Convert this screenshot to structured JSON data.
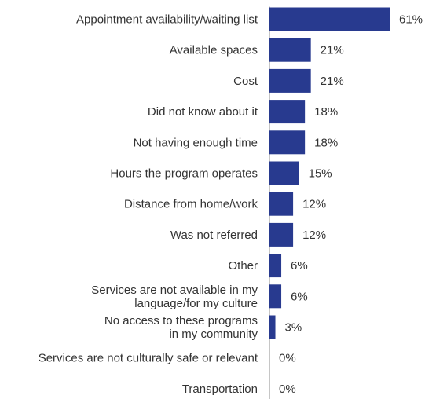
{
  "chart_data": {
    "type": "bar",
    "orientation": "horizontal",
    "title": "",
    "xlabel": "",
    "ylabel": "",
    "categories": [
      [
        "Appointment availability/waiting list"
      ],
      [
        "Available spaces"
      ],
      [
        "Cost"
      ],
      [
        "Did not know about it"
      ],
      [
        "Not having enough time"
      ],
      [
        "Hours the program operates"
      ],
      [
        "Distance from home/work"
      ],
      [
        "Was not referred"
      ],
      [
        "Other"
      ],
      [
        "Services are not available in my",
        "language/for my culture"
      ],
      [
        "No access to these programs",
        "in my community"
      ],
      [
        "Services are not culturally safe or relevant"
      ],
      [
        "Transportation"
      ]
    ],
    "values": [
      61,
      21,
      21,
      18,
      18,
      15,
      12,
      12,
      6,
      6,
      3,
      0,
      0
    ],
    "value_labels": [
      "61%",
      "21%",
      "21%",
      "18%",
      "18%",
      "15%",
      "12%",
      "12%",
      "6%",
      "6%",
      "3%",
      "0%",
      "0%"
    ],
    "value_unit": "%",
    "xlim": [
      0,
      61
    ],
    "bar_color": "#283a8f",
    "axis_color": "#8c8c8c",
    "text_color": "#333333",
    "grid": false,
    "legend": "none"
  }
}
